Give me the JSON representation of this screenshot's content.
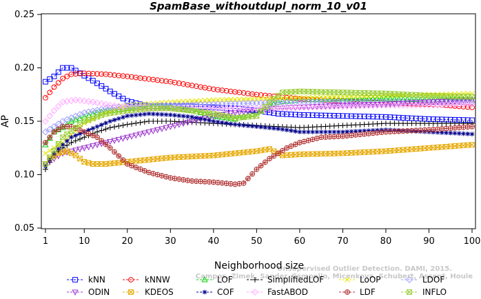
{
  "chart_data": {
    "type": "line",
    "title": "SpamBase_withoutdupl_norm_10_v01",
    "xlabel": "Neighborhood size",
    "ylabel": "AP",
    "xlim": [
      1,
      100
    ],
    "ylim": [
      0.05,
      0.25
    ],
    "x_ticks": [
      1,
      10,
      20,
      30,
      40,
      50,
      60,
      70,
      80,
      90,
      100
    ],
    "y_ticks": [
      0.05,
      0.1,
      0.15,
      0.2,
      0.25
    ],
    "y_tick_labels": [
      "0.05",
      "0.10",
      "0.15",
      "0.20",
      "0.25"
    ],
    "grid": false,
    "legend_position": "bottom",
    "watermark": [
      "Unsupervised Outlier Detection. DAMI, 2015.",
      "Campos, Zimek, Sander, Campello, Micenkova, Schubert, Assent, Houle"
    ],
    "series": [
      {
        "name": "kNN",
        "color": "#0000ff",
        "marker": "square",
        "knots": [
          [
            1,
            0.187
          ],
          [
            3,
            0.192
          ],
          [
            5,
            0.2
          ],
          [
            7,
            0.2
          ],
          [
            9,
            0.195
          ],
          [
            12,
            0.188
          ],
          [
            16,
            0.178
          ],
          [
            20,
            0.169
          ],
          [
            25,
            0.164
          ],
          [
            30,
            0.164
          ],
          [
            35,
            0.164
          ],
          [
            40,
            0.163
          ],
          [
            45,
            0.162
          ],
          [
            50,
            0.16
          ],
          [
            55,
            0.157
          ],
          [
            60,
            0.156
          ],
          [
            70,
            0.155
          ],
          [
            80,
            0.154
          ],
          [
            90,
            0.152
          ],
          [
            100,
            0.151
          ]
        ]
      },
      {
        "name": "kNNW",
        "color": "#ff0000",
        "marker": "circle",
        "knots": [
          [
            1,
            0.172
          ],
          [
            3,
            0.182
          ],
          [
            5,
            0.19
          ],
          [
            7,
            0.194
          ],
          [
            10,
            0.195
          ],
          [
            15,
            0.194
          ],
          [
            20,
            0.192
          ],
          [
            30,
            0.187
          ],
          [
            40,
            0.18
          ],
          [
            50,
            0.175
          ],
          [
            60,
            0.171
          ],
          [
            70,
            0.169
          ],
          [
            80,
            0.167
          ],
          [
            90,
            0.166
          ],
          [
            100,
            0.163
          ]
        ]
      },
      {
        "name": "LOF",
        "color": "#00cc00",
        "marker": "triangle-up",
        "knots": [
          [
            1,
            0.128
          ],
          [
            3,
            0.14
          ],
          [
            5,
            0.144
          ],
          [
            7,
            0.15
          ],
          [
            10,
            0.154
          ],
          [
            13,
            0.158
          ],
          [
            16,
            0.16
          ],
          [
            20,
            0.162
          ],
          [
            25,
            0.164
          ],
          [
            30,
            0.163
          ],
          [
            35,
            0.16
          ],
          [
            40,
            0.155
          ],
          [
            45,
            0.152
          ],
          [
            50,
            0.158
          ],
          [
            55,
            0.168
          ],
          [
            60,
            0.17
          ],
          [
            70,
            0.171
          ],
          [
            80,
            0.171
          ],
          [
            90,
            0.17
          ],
          [
            100,
            0.17
          ]
        ]
      },
      {
        "name": "SimplifiedLOF",
        "color": "#000000",
        "marker": "plus",
        "knots": [
          [
            1,
            0.105
          ],
          [
            3,
            0.118
          ],
          [
            5,
            0.125
          ],
          [
            7,
            0.13
          ],
          [
            10,
            0.135
          ],
          [
            13,
            0.14
          ],
          [
            16,
            0.144
          ],
          [
            20,
            0.147
          ],
          [
            25,
            0.15
          ],
          [
            30,
            0.15
          ],
          [
            35,
            0.149
          ],
          [
            40,
            0.148
          ],
          [
            45,
            0.147
          ],
          [
            50,
            0.146
          ],
          [
            55,
            0.145
          ],
          [
            60,
            0.144
          ],
          [
            70,
            0.146
          ],
          [
            80,
            0.148
          ],
          [
            90,
            0.148
          ],
          [
            100,
            0.148
          ]
        ]
      },
      {
        "name": "LoOP",
        "color": "#e6e600",
        "marker": "x",
        "knots": [
          [
            1,
            0.12
          ],
          [
            5,
            0.13
          ],
          [
            10,
            0.148
          ],
          [
            15,
            0.158
          ],
          [
            20,
            0.165
          ],
          [
            30,
            0.168
          ],
          [
            40,
            0.17
          ],
          [
            50,
            0.171
          ],
          [
            60,
            0.172
          ],
          [
            70,
            0.173
          ],
          [
            80,
            0.174
          ],
          [
            90,
            0.175
          ],
          [
            100,
            0.176
          ]
        ]
      },
      {
        "name": "LDOF",
        "color": "#9999ff",
        "marker": "diamond",
        "knots": [
          [
            1,
            0.14
          ],
          [
            5,
            0.15
          ],
          [
            10,
            0.158
          ],
          [
            15,
            0.162
          ],
          [
            20,
            0.164
          ],
          [
            30,
            0.165
          ],
          [
            40,
            0.166
          ],
          [
            50,
            0.167
          ],
          [
            60,
            0.168
          ],
          [
            70,
            0.168
          ],
          [
            80,
            0.168
          ],
          [
            90,
            0.168
          ],
          [
            100,
            0.168
          ]
        ]
      },
      {
        "name": "ODIN",
        "color": "#9933cc",
        "marker": "triangle-down",
        "knots": [
          [
            1,
            0.11
          ],
          [
            5,
            0.12
          ],
          [
            10,
            0.125
          ],
          [
            15,
            0.13
          ],
          [
            20,
            0.135
          ],
          [
            25,
            0.14
          ],
          [
            30,
            0.145
          ],
          [
            35,
            0.15
          ],
          [
            40,
            0.155
          ],
          [
            45,
            0.158
          ],
          [
            50,
            0.16
          ],
          [
            55,
            0.162
          ],
          [
            60,
            0.163
          ],
          [
            70,
            0.165
          ],
          [
            80,
            0.166
          ],
          [
            90,
            0.168
          ],
          [
            100,
            0.17
          ]
        ]
      },
      {
        "name": "KDEOS",
        "color": "#e6a800",
        "marker": "square-x",
        "knots": [
          [
            1,
            0.11
          ],
          [
            2,
            0.115
          ],
          [
            4,
            0.12
          ],
          [
            6,
            0.122
          ],
          [
            8,
            0.118
          ],
          [
            10,
            0.112
          ],
          [
            12,
            0.11
          ],
          [
            15,
            0.11
          ],
          [
            20,
            0.112
          ],
          [
            25,
            0.114
          ],
          [
            30,
            0.116
          ],
          [
            35,
            0.117
          ],
          [
            40,
            0.118
          ],
          [
            45,
            0.12
          ],
          [
            50,
            0.122
          ],
          [
            53,
            0.124
          ],
          [
            56,
            0.118
          ],
          [
            60,
            0.119
          ],
          [
            70,
            0.12
          ],
          [
            80,
            0.122
          ],
          [
            90,
            0.125
          ],
          [
            100,
            0.128
          ]
        ]
      },
      {
        "name": "COF",
        "color": "#00008b",
        "marker": "asterisk",
        "knots": [
          [
            1,
            0.108
          ],
          [
            3,
            0.12
          ],
          [
            5,
            0.128
          ],
          [
            7,
            0.135
          ],
          [
            10,
            0.14
          ],
          [
            13,
            0.145
          ],
          [
            16,
            0.15
          ],
          [
            20,
            0.155
          ],
          [
            25,
            0.157
          ],
          [
            30,
            0.156
          ],
          [
            35,
            0.154
          ],
          [
            40,
            0.15
          ],
          [
            45,
            0.147
          ],
          [
            50,
            0.145
          ],
          [
            55,
            0.143
          ],
          [
            60,
            0.14
          ],
          [
            70,
            0.14
          ],
          [
            80,
            0.142
          ],
          [
            90,
            0.14
          ],
          [
            100,
            0.138
          ]
        ]
      },
      {
        "name": "FastABOD",
        "color": "#ffaaff",
        "marker": "diamond",
        "knots": [
          [
            1,
            0.15
          ],
          [
            3,
            0.16
          ],
          [
            5,
            0.168
          ],
          [
            8,
            0.17
          ],
          [
            12,
            0.168
          ],
          [
            16,
            0.165
          ],
          [
            20,
            0.163
          ],
          [
            30,
            0.162
          ],
          [
            40,
            0.162
          ],
          [
            50,
            0.162
          ],
          [
            60,
            0.163
          ],
          [
            70,
            0.164
          ],
          [
            80,
            0.165
          ],
          [
            90,
            0.165
          ],
          [
            100,
            0.166
          ]
        ]
      },
      {
        "name": "LDF",
        "color": "#b03030",
        "marker": "circle-plus",
        "knots": [
          [
            1,
            0.13
          ],
          [
            3,
            0.14
          ],
          [
            5,
            0.145
          ],
          [
            7,
            0.145
          ],
          [
            10,
            0.14
          ],
          [
            13,
            0.135
          ],
          [
            16,
            0.125
          ],
          [
            20,
            0.11
          ],
          [
            25,
            0.102
          ],
          [
            30,
            0.097
          ],
          [
            35,
            0.094
          ],
          [
            40,
            0.093
          ],
          [
            45,
            0.091
          ],
          [
            47,
            0.092
          ],
          [
            50,
            0.105
          ],
          [
            53,
            0.115
          ],
          [
            57,
            0.125
          ],
          [
            60,
            0.13
          ],
          [
            65,
            0.135
          ],
          [
            70,
            0.136
          ],
          [
            80,
            0.14
          ],
          [
            90,
            0.142
          ],
          [
            100,
            0.145
          ]
        ]
      },
      {
        "name": "INFLO",
        "color": "#99cc33",
        "marker": "square-x",
        "knots": [
          [
            1,
            0.11
          ],
          [
            5,
            0.135
          ],
          [
            10,
            0.15
          ],
          [
            15,
            0.157
          ],
          [
            20,
            0.16
          ],
          [
            25,
            0.162
          ],
          [
            30,
            0.162
          ],
          [
            35,
            0.16
          ],
          [
            40,
            0.157
          ],
          [
            45,
            0.153
          ],
          [
            50,
            0.155
          ],
          [
            53,
            0.168
          ],
          [
            56,
            0.177
          ],
          [
            60,
            0.178
          ],
          [
            70,
            0.177
          ],
          [
            80,
            0.176
          ],
          [
            90,
            0.174
          ],
          [
            100,
            0.173
          ]
        ]
      }
    ]
  }
}
